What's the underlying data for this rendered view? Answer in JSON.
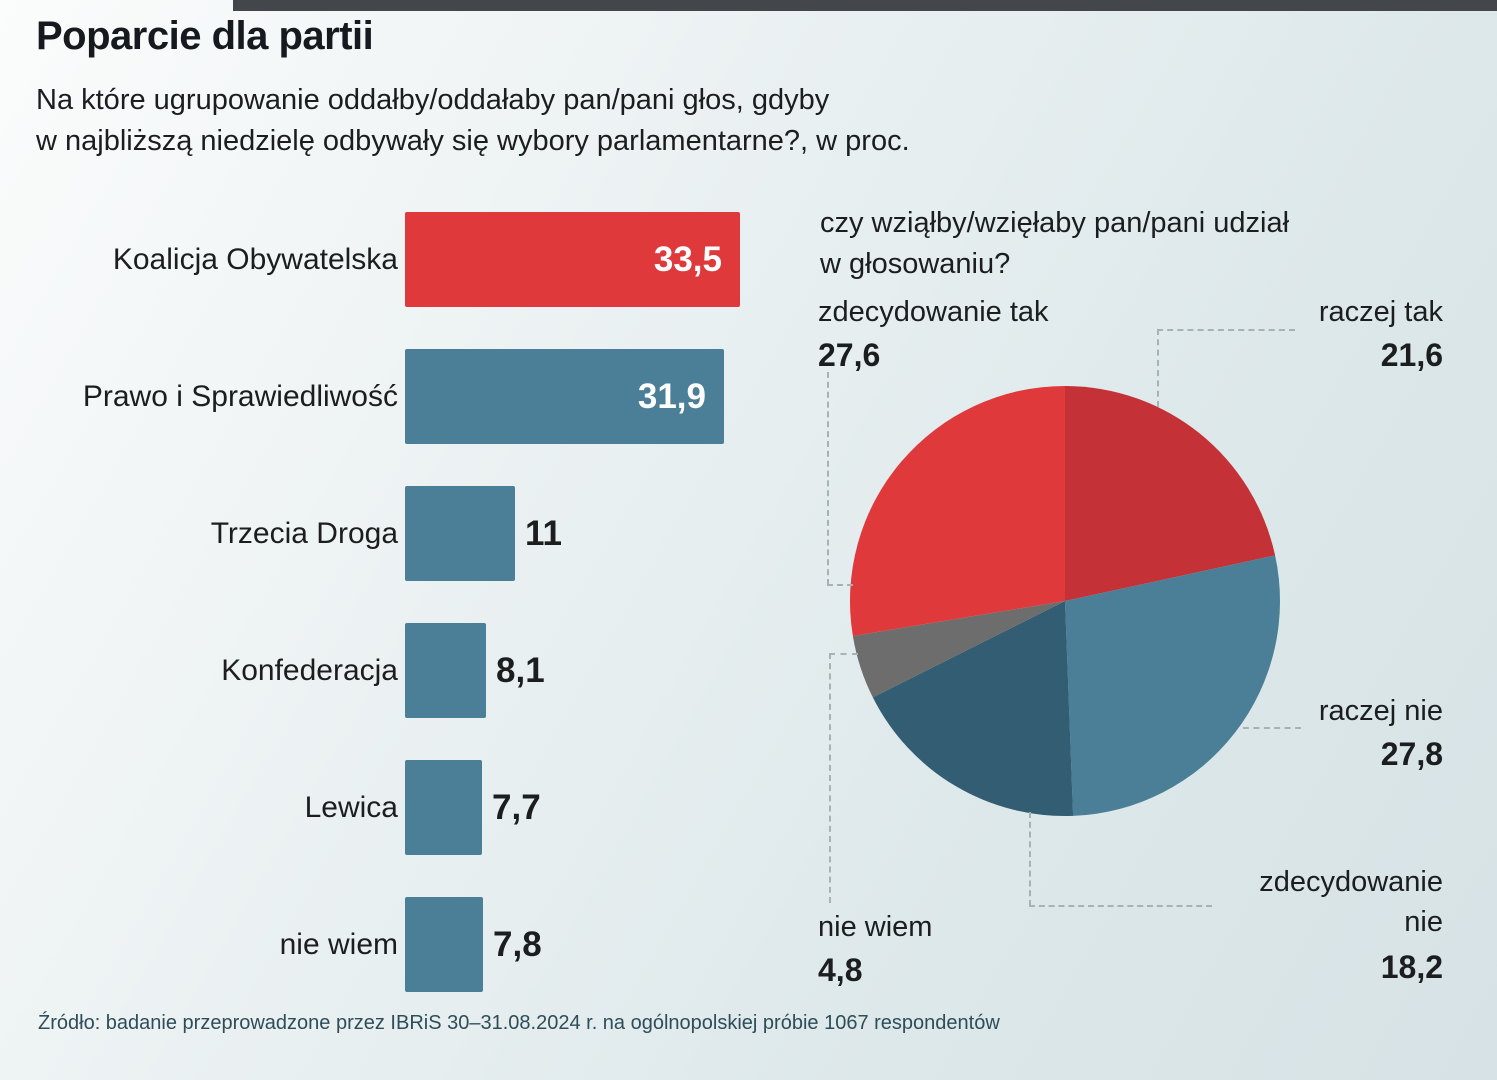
{
  "page": {
    "title": "Poparcie dla partii",
    "subtitle_line1": "Na które ugrupowanie oddałby/oddałaby pan/pani głos, gdyby",
    "subtitle_line2": "w najbliższą niedzielę odbywały się wybory parlamentarne?, w proc.",
    "source": "Źródło: badanie przeprowadzone przez IBRiS 30–31.08.2024 r. na ogólnopolskiej próbie 1067 respondentów"
  },
  "colors": {
    "red_bright": "#e0393c",
    "red_dark": "#c43137",
    "teal": "#4b7e97",
    "teal_dark": "#335d72",
    "gray": "#6d6d6d",
    "text": "#1b1d1f",
    "leader_line": "#a6b2b4",
    "top_strip": "#43474c"
  },
  "chart_data": [
    {
      "type": "bar",
      "title": "Poparcie dla partii",
      "orientation": "horizontal",
      "unit": "proc.",
      "categories": [
        "Koalicja Obywatelska",
        "Prawo i Sprawiedliwość",
        "Trzecia Droga",
        "Konfederacja",
        "Lewica",
        "nie wiem"
      ],
      "values": [
        33.5,
        31.9,
        11,
        8.1,
        7.7,
        7.8
      ],
      "value_labels": [
        "33,5",
        "31,9",
        "11",
        "8,1",
        "7,7",
        "7,8"
      ],
      "bar_colors": [
        "#e0393c",
        "#4b7e97",
        "#4b7e97",
        "#4b7e97",
        "#4b7e97",
        "#4b7e97"
      ],
      "xlim": [
        0,
        35
      ],
      "grid": false
    },
    {
      "type": "pie",
      "question_line1": "czy wziąłby/wzięłaby pan/pani udział",
      "question_line2": "w głosowaniu?",
      "start_angle_deg": 0,
      "direction": "clockwise",
      "slices": [
        {
          "label": "raczej tak",
          "value": 21.6,
          "value_label": "21,6",
          "color": "#c43137"
        },
        {
          "label": "raczej nie",
          "value": 27.8,
          "value_label": "27,8",
          "color": "#4b7e97"
        },
        {
          "label": "zdecydowanie nie",
          "value": 18.2,
          "value_label": "18,2",
          "color": "#335d72"
        },
        {
          "label": "nie wiem",
          "value": 4.8,
          "value_label": "4,8",
          "color": "#6d6d6d"
        },
        {
          "label": "zdecydowanie tak",
          "value": 27.6,
          "value_label": "27,6",
          "color": "#e0393c"
        }
      ]
    }
  ]
}
